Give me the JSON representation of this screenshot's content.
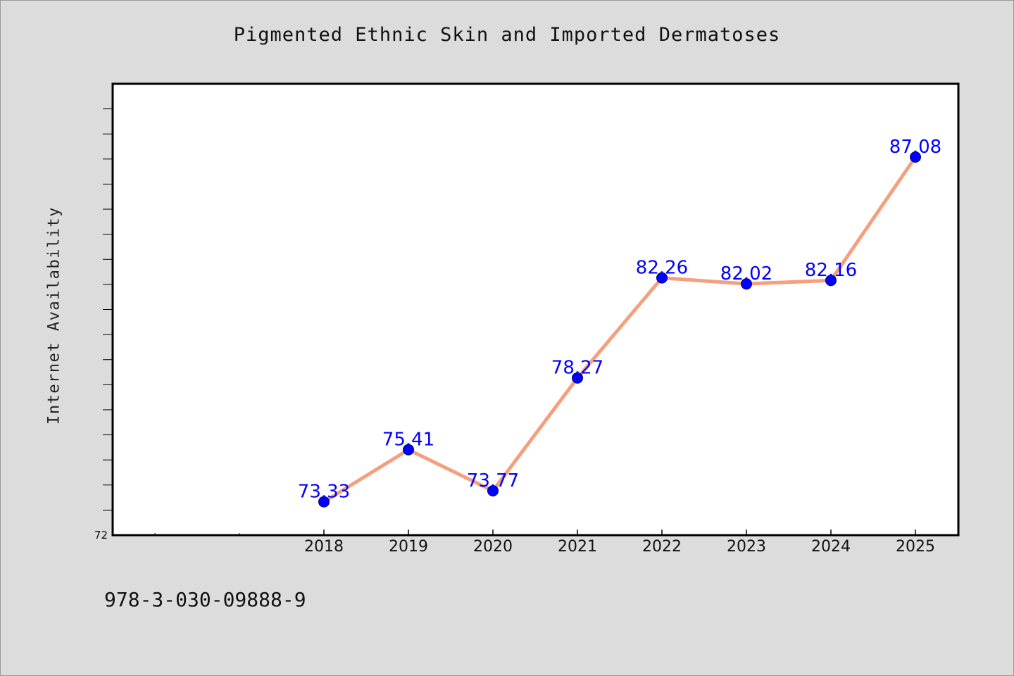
{
  "chart_data": {
    "type": "line",
    "title": "Pigmented Ethnic Skin and Imported Dermatoses",
    "xlabel": "",
    "ylabel": "Internet Availability",
    "categories": [
      "2018",
      "2019",
      "2020",
      "2021",
      "2022",
      "2023",
      "2024",
      "2025"
    ],
    "series": [
      {
        "values": [
          73.33,
          75.41,
          73.77,
          78.27,
          82.26,
          82.02,
          82.16,
          87.08
        ],
        "labels": [
          "73.33",
          "75.41",
          "73.77",
          "78.27",
          "82.26",
          "82.02",
          "82.16",
          "87.08"
        ]
      }
    ],
    "ylim": [
      72,
      90
    ],
    "y_tick_labels": [
      "72"
    ],
    "grid": false,
    "legend": "none",
    "colors": {
      "line": "#f4a07e",
      "marker": "#0000ff",
      "label": "#0000ff",
      "background": "#dcdcdc",
      "plot_bg": "#ffffff"
    }
  },
  "footer": {
    "isbn": "978-3-030-09888-9"
  }
}
